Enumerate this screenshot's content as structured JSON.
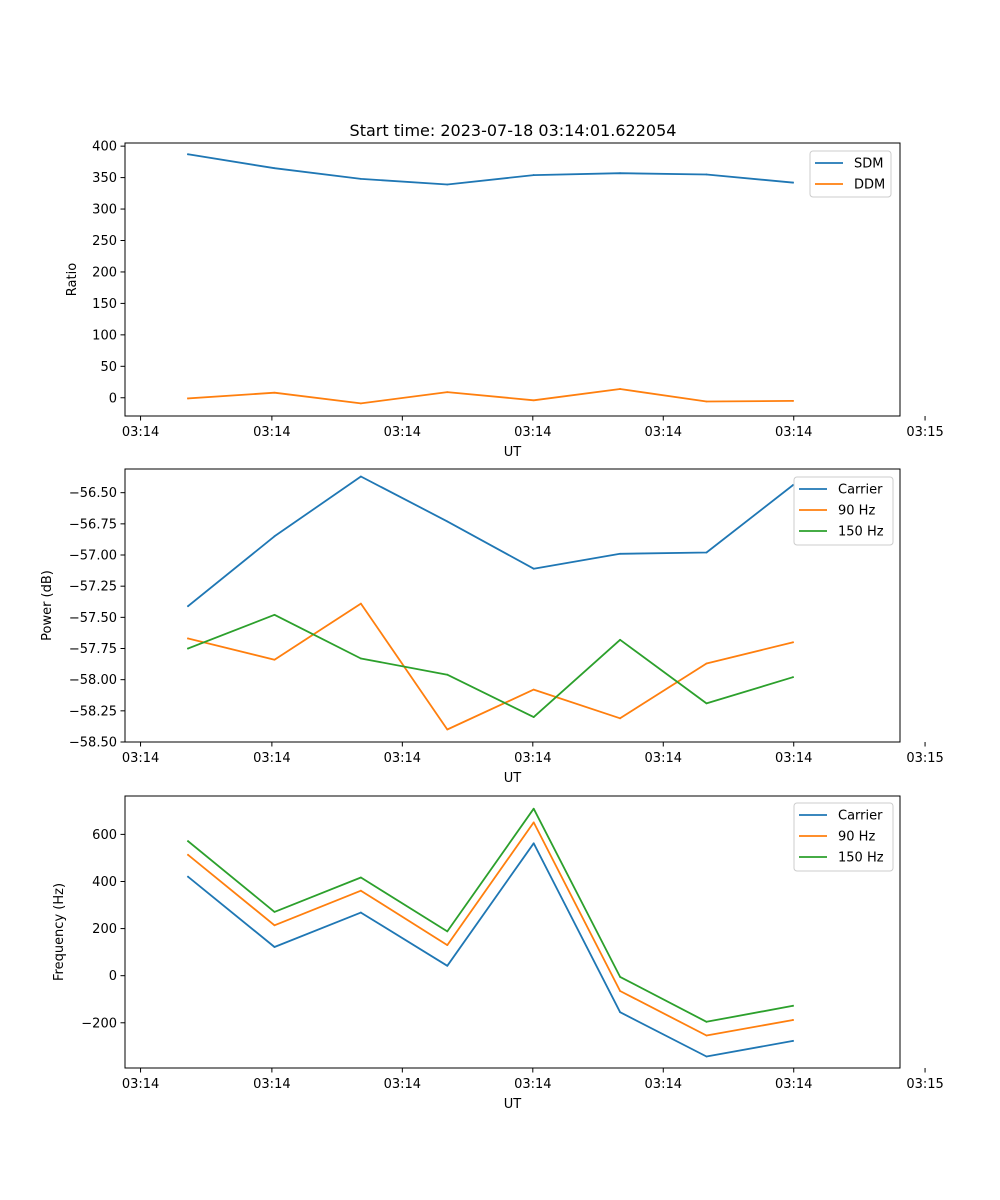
{
  "figure": {
    "title": "Start time: 2023-07-18 03:14:01.622054"
  },
  "colors": {
    "blue": "#1f77b4",
    "orange": "#ff7f0e",
    "green": "#2ca02c"
  },
  "chart_data": [
    {
      "type": "line",
      "title": "Start time: 2023-07-18 03:14:01.622054",
      "xlabel": "UT",
      "ylabel": "Ratio",
      "x": [
        1,
        2,
        3,
        4,
        5,
        6,
        7,
        8
      ],
      "xlim": [
        0.27,
        9.24
      ],
      "xticks": [
        0.45,
        1.97,
        3.48,
        4.99,
        6.5,
        8.01,
        9.53
      ],
      "xticklabels": [
        "03:14",
        "03:14",
        "03:14",
        "03:14",
        "03:14",
        "03:14",
        "03:15"
      ],
      "ylim": [
        -29,
        405
      ],
      "yticks": [
        0,
        50,
        100,
        150,
        200,
        250,
        300,
        350,
        400
      ],
      "yticklabels": [
        "0",
        "50",
        "100",
        "150",
        "200",
        "250",
        "300",
        "350",
        "400"
      ],
      "legend": "top-right",
      "series": [
        {
          "name": "SDM",
          "color": "#1f77b4",
          "values": [
            387,
            365,
            348,
            339,
            354,
            357,
            355,
            342
          ]
        },
        {
          "name": "DDM",
          "color": "#ff7f0e",
          "values": [
            -1,
            8,
            -9,
            9,
            -4,
            14,
            -6,
            -5
          ]
        }
      ]
    },
    {
      "type": "line",
      "xlabel": "UT",
      "ylabel": "Power (dB)",
      "x": [
        1,
        2,
        3,
        4,
        5,
        6,
        7,
        8
      ],
      "xlim": [
        0.27,
        9.24
      ],
      "xticks": [
        0.45,
        1.97,
        3.48,
        4.99,
        6.5,
        8.01,
        9.53
      ],
      "xticklabels": [
        "03:14",
        "03:14",
        "03:14",
        "03:14",
        "03:14",
        "03:14",
        "03:15"
      ],
      "ylim": [
        -58.5,
        -56.31
      ],
      "yticks": [
        -58.5,
        -58.25,
        -58.0,
        -57.75,
        -57.5,
        -57.25,
        -57.0,
        -56.75,
        -56.5
      ],
      "yticklabels": [
        "−58.50",
        "−58.25",
        "−58.00",
        "−57.75",
        "−57.50",
        "−57.25",
        "−57.00",
        "−56.75",
        "−56.50"
      ],
      "legend": "top-right",
      "series": [
        {
          "name": "Carrier",
          "color": "#1f77b4",
          "values": [
            -57.41,
            -56.85,
            -56.37,
            -56.73,
            -57.11,
            -56.99,
            -56.98,
            -56.44
          ]
        },
        {
          "name": "90 Hz",
          "color": "#ff7f0e",
          "values": [
            -57.67,
            -57.84,
            -57.39,
            -58.4,
            -58.08,
            -58.31,
            -57.87,
            -57.7
          ]
        },
        {
          "name": "150 Hz",
          "color": "#2ca02c",
          "values": [
            -57.75,
            -57.48,
            -57.83,
            -57.96,
            -58.3,
            -57.68,
            -58.19,
            -57.98
          ]
        }
      ]
    },
    {
      "type": "line",
      "xlabel": "UT",
      "ylabel": "Frequency (Hz)",
      "x": [
        1,
        2,
        3,
        4,
        5,
        6,
        7,
        8
      ],
      "xlim": [
        0.27,
        9.24
      ],
      "xticks": [
        0.45,
        1.97,
        3.48,
        4.99,
        6.5,
        8.01,
        9.53
      ],
      "xticklabels": [
        "03:14",
        "03:14",
        "03:14",
        "03:14",
        "03:14",
        "03:14",
        "03:15"
      ],
      "ylim": [
        -392,
        763
      ],
      "yticks": [
        -200,
        0,
        200,
        400,
        600
      ],
      "yticklabels": [
        "−200",
        "0",
        "200",
        "400",
        "600"
      ],
      "legend": "top-right",
      "series": [
        {
          "name": "Carrier",
          "color": "#1f77b4",
          "values": [
            420,
            122,
            268,
            42,
            562,
            -155,
            -343,
            -277
          ]
        },
        {
          "name": "90 Hz",
          "color": "#ff7f0e",
          "values": [
            513,
            214,
            361,
            130,
            651,
            -65,
            -254,
            -188
          ]
        },
        {
          "name": "150 Hz",
          "color": "#2ca02c",
          "values": [
            571,
            271,
            417,
            188,
            709,
            -5,
            -196,
            -128
          ]
        }
      ]
    }
  ]
}
